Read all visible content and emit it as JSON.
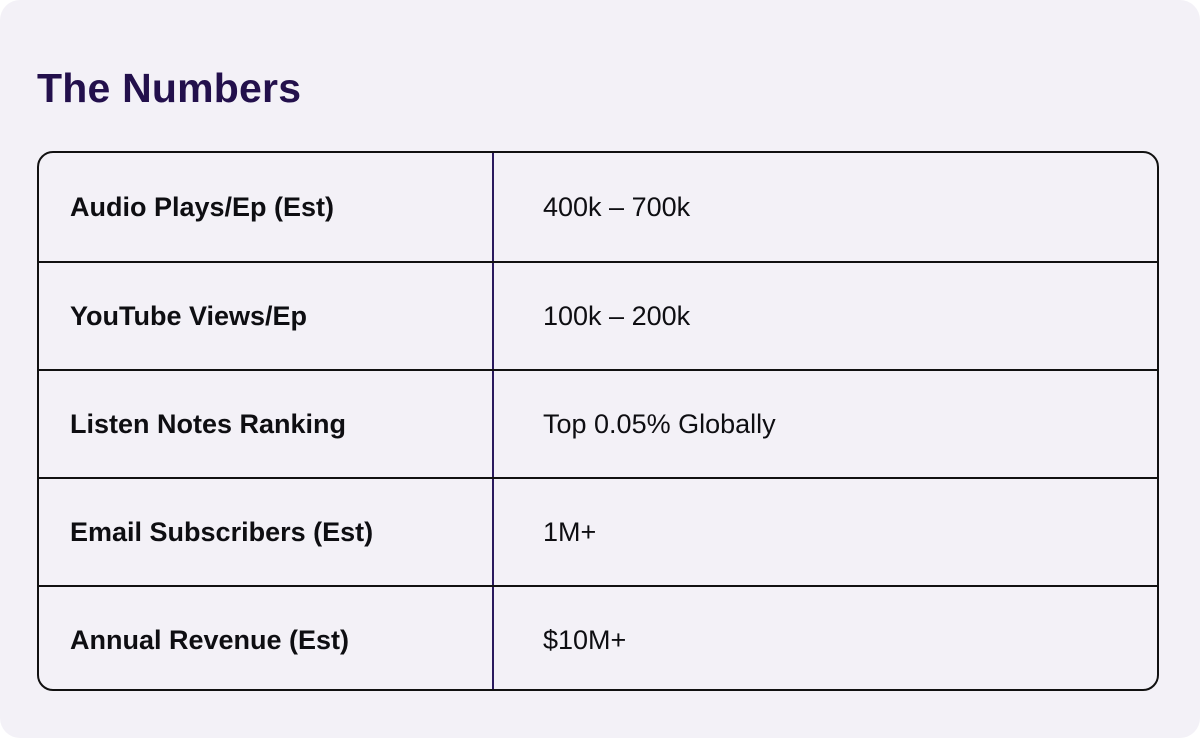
{
  "page": {
    "title": "The Numbers"
  },
  "table": {
    "rows": [
      {
        "label": "Audio Plays/Ep (Est)",
        "value": "400k – 700k"
      },
      {
        "label": "YouTube Views/Ep",
        "value": "100k – 200k"
      },
      {
        "label": "Listen Notes Ranking",
        "value": "Top 0.05% Globally"
      },
      {
        "label": "Email Subscribers (Est)",
        "value": "1M+"
      },
      {
        "label": "Annual Revenue (Est)",
        "value": "$10M+"
      }
    ]
  },
  "colors": {
    "background": "#f3f1f7",
    "title": "#23104c",
    "border": "#111111",
    "divider": "#2a1a5e",
    "text": "#0e0e12"
  }
}
